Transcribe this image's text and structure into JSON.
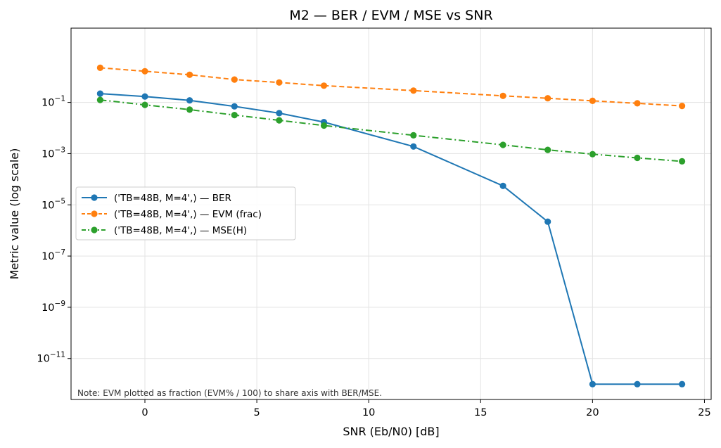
{
  "chart_data": {
    "type": "line",
    "title": "M2 — BER / EVM / MSE vs SNR",
    "xlabel": "SNR (Eb/N0) [dB]",
    "ylabel": "Metric value (log scale)",
    "yscale": "log",
    "xlim": [
      -3.3,
      25.3
    ],
    "ylim_log10": [
      -12.6,
      1.9
    ],
    "xticks": [
      0,
      5,
      10,
      15,
      20,
      25
    ],
    "yticks_exponents": [
      -11,
      -9,
      -7,
      -5,
      -3,
      -1
    ],
    "grid": true,
    "legend_position": "center-left",
    "note": "Note: EVM plotted as fraction (EVM% / 100) to share axis with BER/MSE.",
    "x": [
      -2,
      0,
      2,
      4,
      6,
      8,
      12,
      16,
      18,
      20,
      22,
      24
    ],
    "series": [
      {
        "name": "('TB=48B, M=4',) — BER",
        "color": "#1f77b4",
        "dash": "solid",
        "values": [
          0.22,
          0.17,
          0.12,
          0.07,
          0.038,
          0.017,
          0.0019,
          5.5e-05,
          2.2e-06,
          1e-12,
          1e-12,
          1e-12
        ]
      },
      {
        "name": "('TB=48B, M=4',) — EVM (frac)",
        "color": "#ff7f0e",
        "dash": "dashed",
        "values": [
          2.25,
          1.65,
          1.2,
          0.78,
          0.6,
          0.45,
          0.29,
          0.18,
          0.145,
          0.115,
          0.092,
          0.073
        ]
      },
      {
        "name": "('TB=48B, M=4',) — MSE(H)",
        "color": "#2ca02c",
        "dash": "dashdot",
        "values": [
          0.125,
          0.08,
          0.052,
          0.032,
          0.02,
          0.0125,
          0.0052,
          0.0022,
          0.0014,
          0.00095,
          0.00068,
          0.0005
        ]
      }
    ]
  }
}
